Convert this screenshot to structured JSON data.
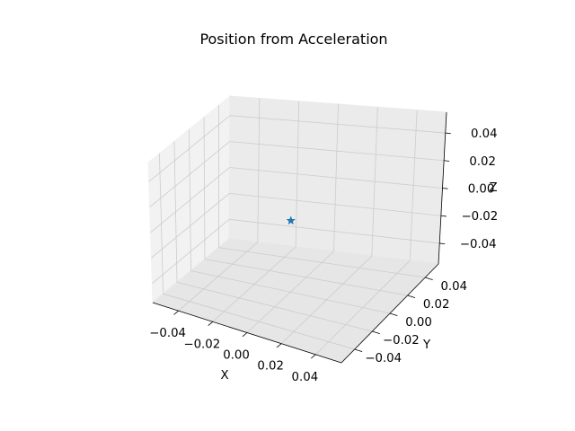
{
  "chart_data": {
    "type": "scatter",
    "title": "Position from Acceleration",
    "xlabel": "X",
    "ylabel": "Y",
    "zlabel": "Z",
    "xlim": [
      -0.055,
      0.055
    ],
    "ylim": [
      -0.055,
      0.055
    ],
    "zlim": [
      -0.055,
      0.055
    ],
    "xticks": [
      "−0.04",
      "−0.02",
      "0.00",
      "0.02",
      "0.04"
    ],
    "yticks": [
      "−0.04",
      "−0.02",
      "0.00",
      "0.02",
      "0.04"
    ],
    "zticks": [
      "−0.04",
      "−0.02",
      "0.00",
      "0.02",
      "0.04"
    ],
    "grid": true,
    "marker": "*",
    "series": [
      {
        "points": [
          {
            "x": 0.0,
            "y": 0.0,
            "z": 0.0
          }
        ],
        "color": "#1f77b4"
      }
    ]
  }
}
